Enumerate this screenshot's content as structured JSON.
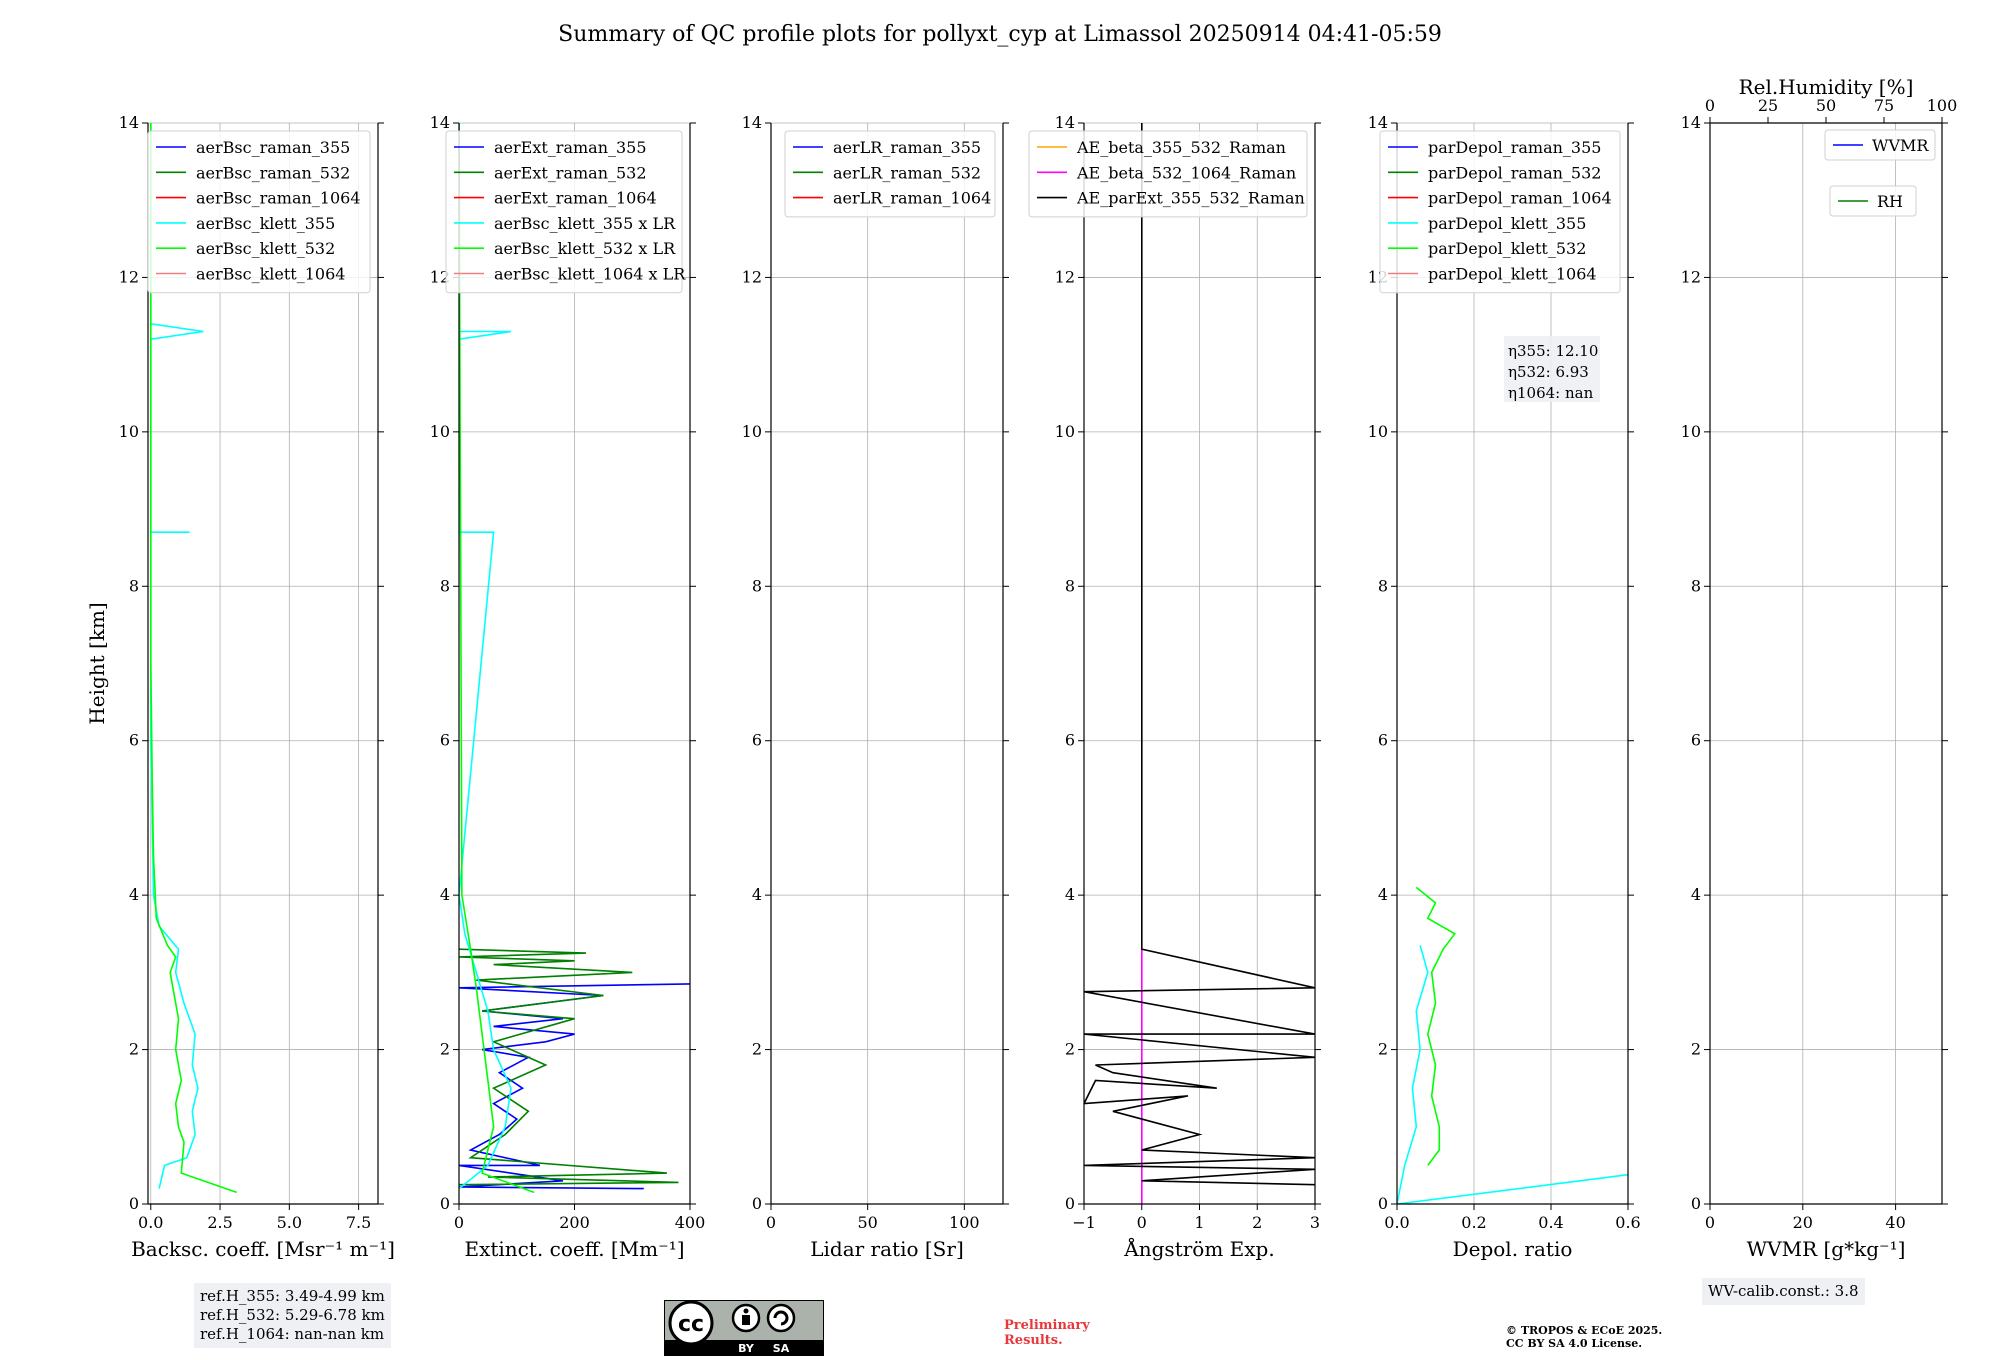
{
  "title": "Summary of QC profile plots for pollyxt_cyp at Limassol 20250914 04:41-05:59",
  "ref_box": [
    "ref.H_355: 3.49-4.99 km",
    "ref.H_532: 5.29-6.78 km",
    "ref.H_1064: nan-nan km"
  ],
  "wv_calib": "WV-calib.const.: 3.8",
  "license": {
    "cc": "cc",
    "by": "BY",
    "sa": "SA"
  },
  "preliminary": [
    "Preliminary",
    "Results."
  ],
  "copyright": [
    "© TROPOS & ECoE 2025.",
    "CC BY SA 4.0 License."
  ],
  "colors": {
    "raman_355": "#0000ff",
    "raman_532": "#008000",
    "raman_1064": "#ff0000",
    "klett_355": "#00ffff",
    "klett_532": "#00ff00",
    "klett_1064": "#f08080",
    "ae_beta_355_532": "#ffa500",
    "ae_beta_532_1064": "#ff00ff",
    "ae_parext": "#000000"
  },
  "chart_data": [
    {
      "type": "line",
      "ylabel": "Height [km]",
      "xlabel": "Backsc. coeff. [Msr⁻¹ m⁻¹]",
      "xlim": [
        -0.1,
        8.2
      ],
      "ylim": [
        0,
        14
      ],
      "xticks": [
        "0.0",
        "2.5",
        "5.0",
        "7.5"
      ],
      "yticks": [
        "0",
        "2",
        "4",
        "6",
        "8",
        "10",
        "12",
        "14"
      ],
      "grid": true,
      "legend": "top-right",
      "legend_entries": [
        "aerBsc_raman_355",
        "aerBsc_raman_532",
        "aerBsc_raman_1064",
        "aerBsc_klett_355",
        "aerBsc_klett_532",
        "aerBsc_klett_1064"
      ],
      "series": [
        {
          "name": "aerBsc_klett_355",
          "color": "#00ffff",
          "x": [
            0.3,
            0.5,
            1.3,
            1.6,
            1.5,
            1.7,
            1.5,
            1.6,
            1.2,
            0.9,
            1.0,
            0.3,
            0.1,
            0.05,
            0.0,
            0.0,
            0.0,
            0.0,
            0.0,
            0.0,
            1.4,
            0.0,
            0.0,
            1.9,
            0.0,
            0.0
          ],
          "y": [
            0.2,
            0.5,
            0.6,
            0.9,
            1.2,
            1.5,
            1.8,
            2.2,
            2.6,
            3.0,
            3.3,
            3.6,
            4.0,
            5.0,
            6.0,
            6.1,
            7.0,
            7.1,
            8.0,
            8.7,
            8.7,
            8.7,
            11.2,
            11.3,
            11.4,
            14.0
          ]
        },
        {
          "name": "aerBsc_klett_532",
          "color": "#00ff00",
          "x": [
            3.1,
            1.1,
            1.2,
            1.0,
            0.9,
            1.1,
            0.9,
            1.0,
            0.8,
            0.7,
            0.9,
            0.6,
            0.2,
            0.1,
            0.05,
            0.0,
            0.0,
            0.0,
            0.0,
            0.0
          ],
          "y": [
            0.15,
            0.4,
            0.8,
            1.0,
            1.3,
            1.6,
            2.0,
            2.4,
            2.8,
            3.0,
            3.2,
            3.35,
            3.7,
            4.5,
            5.5,
            7.0,
            9.0,
            11.0,
            13.0,
            14.0
          ]
        }
      ]
    },
    {
      "type": "line",
      "xlabel": "Extinct. coeff. [Mm⁻¹]",
      "xlim": [
        0,
        400
      ],
      "ylim": [
        0,
        14
      ],
      "xticks": [
        "0",
        "200",
        "400"
      ],
      "yticks": [
        "0",
        "2",
        "4",
        "6",
        "8",
        "10",
        "12",
        "14"
      ],
      "grid": true,
      "legend": "top-right",
      "legend_entries": [
        "aerExt_raman_355",
        "aerExt_raman_532",
        "aerExt_raman_1064",
        "aerBsc_klett_355 x LR",
        "aerBsc_klett_532 x LR",
        "aerBsc_klett_1064 x LR"
      ],
      "series": [
        {
          "name": "aerExt_raman_355",
          "color": "#0000ff",
          "x": [
            320,
            0,
            180,
            0,
            140,
            20,
            70,
            100,
            60,
            110,
            70,
            120,
            40,
            150,
            200,
            60,
            180,
            40,
            250,
            0,
            400
          ],
          "y": [
            0.2,
            0.22,
            0.3,
            0.5,
            0.5,
            0.7,
            0.9,
            1.1,
            1.3,
            1.5,
            1.7,
            1.9,
            2.0,
            2.1,
            2.2,
            2.3,
            2.4,
            2.5,
            2.7,
            2.8,
            2.85
          ]
        },
        {
          "name": "aerExt_raman_532",
          "color": "#008000",
          "x": [
            0,
            380,
            50,
            360,
            20,
            80,
            120,
            60,
            150,
            60,
            200,
            40,
            250,
            30,
            300,
            60,
            200,
            0,
            220,
            0
          ],
          "y": [
            0.25,
            0.28,
            0.35,
            0.4,
            0.6,
            0.9,
            1.2,
            1.5,
            1.8,
            2.1,
            2.4,
            2.5,
            2.7,
            2.9,
            3.0,
            3.1,
            3.15,
            3.2,
            3.25,
            3.3
          ]
        },
        {
          "name": "aerBsc_klett_355 x LR",
          "color": "#00ffff",
          "x": [
            0,
            50,
            80,
            90,
            60,
            50,
            30,
            10,
            0,
            60,
            0,
            0,
            90,
            0,
            0
          ],
          "y": [
            0.2,
            0.5,
            1.0,
            1.5,
            2.0,
            2.5,
            3.0,
            3.5,
            4.0,
            8.7,
            8.7,
            11.2,
            11.3,
            11.3,
            14.0
          ]
        },
        {
          "name": "aerBsc_klett_532 x LR",
          "color": "#00ff00",
          "x": [
            130,
            40,
            60,
            50,
            40,
            30,
            20,
            5,
            0
          ],
          "y": [
            0.15,
            0.4,
            1.0,
            1.6,
            2.2,
            2.8,
            3.3,
            4.0,
            14.0
          ]
        }
      ]
    },
    {
      "type": "line",
      "xlabel": "Lidar ratio [Sr]",
      "xlim": [
        0,
        120
      ],
      "ylim": [
        0,
        14
      ],
      "xticks": [
        "0",
        "50",
        "100"
      ],
      "yticks": [
        "0",
        "2",
        "4",
        "6",
        "8",
        "10",
        "12",
        "14"
      ],
      "grid": true,
      "legend": "top-right",
      "legend_entries": [
        "aerLR_raman_355",
        "aerLR_raman_532",
        "aerLR_raman_1064"
      ],
      "series": []
    },
    {
      "type": "line",
      "xlabel": "Ångström Exp.",
      "xlim": [
        -1,
        3
      ],
      "ylim": [
        0,
        14
      ],
      "xticks": [
        "−1",
        "0",
        "1",
        "2",
        "3"
      ],
      "yticks": [
        "0",
        "2",
        "4",
        "6",
        "8",
        "10",
        "12",
        "14"
      ],
      "grid": true,
      "legend": "top-right",
      "legend_entries": [
        "AE_beta_355_532_Raman",
        "AE_beta_532_1064_Raman",
        "AE_parExt_355_532_Raman"
      ],
      "series": [
        {
          "name": "AE_beta_532_1064_Raman",
          "color": "#ff00ff",
          "x": [
            0,
            0
          ],
          "y": [
            0.0,
            3.3
          ]
        },
        {
          "name": "AE_parExt_355_532_Raman",
          "color": "#000000",
          "x": [
            3.0,
            0.0,
            3.0,
            -1.0,
            3.0,
            0.0,
            1.0,
            -0.5,
            0.8,
            -1.0,
            -0.8,
            1.3,
            -0.5,
            -0.8,
            3.0,
            -1.0,
            3.0,
            -1.0,
            3.0,
            0.0,
            0.0
          ],
          "y": [
            0.25,
            0.3,
            0.45,
            0.5,
            0.6,
            0.7,
            0.9,
            1.2,
            1.4,
            1.3,
            1.6,
            1.5,
            1.7,
            1.8,
            1.9,
            2.2,
            2.2,
            2.75,
            2.8,
            3.3,
            14.0
          ]
        }
      ]
    },
    {
      "type": "line",
      "xlabel": "Depol. ratio",
      "xlim": [
        0,
        0.6
      ],
      "ylim": [
        0,
        14
      ],
      "xticks": [
        "0.0",
        "0.2",
        "0.4",
        "0.6"
      ],
      "yticks": [
        "0",
        "2",
        "4",
        "6",
        "8",
        "10",
        "12",
        "14"
      ],
      "grid": true,
      "legend": "top-right",
      "legend_entries": [
        "parDepol_raman_355",
        "parDepol_raman_532",
        "parDepol_raman_1064",
        "parDepol_klett_355",
        "parDepol_klett_532",
        "parDepol_klett_1064"
      ],
      "annotations": [
        "η355: 12.10",
        "η532: 6.93",
        "η1064: nan"
      ],
      "series": [
        {
          "name": "parDepol_klett_355",
          "color": "#00ffff",
          "x": [
            0.6,
            0.0,
            0.02,
            0.05,
            0.04,
            0.06,
            0.05,
            0.08,
            0.06
          ],
          "y": [
            0.38,
            0.0,
            0.5,
            1.0,
            1.5,
            2.0,
            2.5,
            3.0,
            3.35
          ]
        },
        {
          "name": "parDepol_klett_532",
          "color": "#00ff00",
          "x": [
            0.08,
            0.11,
            0.11,
            0.09,
            0.1,
            0.08,
            0.1,
            0.09,
            0.12,
            0.15,
            0.08,
            0.1,
            0.05
          ],
          "y": [
            0.5,
            0.7,
            1.0,
            1.4,
            1.8,
            2.2,
            2.6,
            3.0,
            3.3,
            3.5,
            3.7,
            3.9,
            4.1
          ]
        }
      ]
    },
    {
      "type": "line",
      "xlabel": "WVMR [g*kg⁻¹]",
      "x2label": "Rel.Humidity [%]",
      "xlim": [
        0,
        50
      ],
      "x2lim": [
        0,
        100
      ],
      "ylim": [
        0,
        14
      ],
      "xticks": [
        "0",
        "20",
        "40"
      ],
      "x2ticks": [
        "0",
        "25",
        "50",
        "75",
        "100"
      ],
      "yticks": [
        "0",
        "2",
        "4",
        "6",
        "8",
        "10",
        "12",
        "14"
      ],
      "grid": true,
      "legend": "top-right",
      "legend_entries": [
        "WVMR",
        "RH"
      ],
      "series": []
    }
  ]
}
